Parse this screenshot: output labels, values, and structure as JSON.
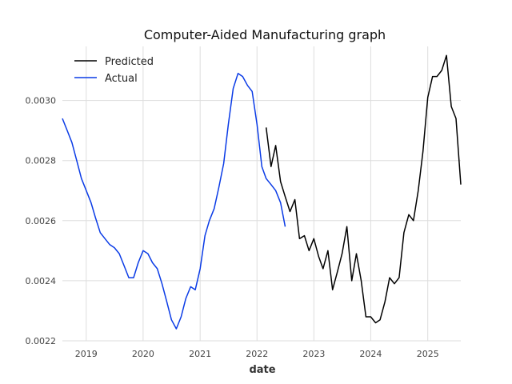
{
  "chart_data": {
    "type": "line",
    "title": "Computer-Aided Manufacturing graph",
    "xlabel": "date",
    "ylabel": "",
    "xlim": [
      "2018-08-01",
      "2025-08-01"
    ],
    "ylim": [
      0.0022,
      0.00318
    ],
    "x_ticks": [
      "2019",
      "2020",
      "2021",
      "2022",
      "2023",
      "2024",
      "2025"
    ],
    "y_ticks": [
      "0.0022",
      "0.0024",
      "0.0026",
      "0.0028",
      "0.0030"
    ],
    "grid": true,
    "legend_position": "top-left",
    "series": [
      {
        "name": "Predicted",
        "color": "#000000",
        "x": [
          "2022-03-01",
          "2022-04-01",
          "2022-05-01",
          "2022-06-01",
          "2022-07-01",
          "2022-08-01",
          "2022-09-01",
          "2022-10-01",
          "2022-11-01",
          "2022-12-01",
          "2023-01-01",
          "2023-02-01",
          "2023-03-01",
          "2023-04-01",
          "2023-05-01",
          "2023-06-01",
          "2023-07-01",
          "2023-08-01",
          "2023-09-01",
          "2023-10-01",
          "2023-11-01",
          "2023-12-01",
          "2024-01-01",
          "2024-02-01",
          "2024-03-01",
          "2024-04-01",
          "2024-05-01",
          "2024-06-01",
          "2024-07-01",
          "2024-08-01",
          "2024-09-01",
          "2024-10-01",
          "2024-11-01",
          "2024-12-01",
          "2025-01-01",
          "2025-02-01",
          "2025-03-01",
          "2025-04-01",
          "2025-05-01",
          "2025-06-01",
          "2025-07-01",
          "2025-08-01"
        ],
        "values": [
          0.00291,
          0.00278,
          0.00285,
          0.00273,
          0.00268,
          0.00263,
          0.00267,
          0.00254,
          0.00255,
          0.0025,
          0.00254,
          0.00248,
          0.00244,
          0.0025,
          0.00237,
          0.00243,
          0.00249,
          0.00258,
          0.0024,
          0.00249,
          0.0024,
          0.00228,
          0.00228,
          0.00226,
          0.00227,
          0.00233,
          0.00241,
          0.00239,
          0.00241,
          0.00256,
          0.00262,
          0.0026,
          0.0027,
          0.00283,
          0.00301,
          0.00308,
          0.00308,
          0.0031,
          0.00315,
          0.00298,
          0.00294,
          0.00272
        ]
      },
      {
        "name": "Actual",
        "color": "#0a3be6",
        "x": [
          "2018-08-01",
          "2018-09-01",
          "2018-10-01",
          "2018-11-01",
          "2018-12-01",
          "2019-01-01",
          "2019-02-01",
          "2019-03-01",
          "2019-04-01",
          "2019-05-01",
          "2019-06-01",
          "2019-07-01",
          "2019-08-01",
          "2019-09-01",
          "2019-10-01",
          "2019-11-01",
          "2019-12-01",
          "2020-01-01",
          "2020-02-01",
          "2020-03-01",
          "2020-04-01",
          "2020-05-01",
          "2020-06-01",
          "2020-07-01",
          "2020-08-01",
          "2020-09-01",
          "2020-10-01",
          "2020-11-01",
          "2020-12-01",
          "2021-01-01",
          "2021-02-01",
          "2021-03-01",
          "2021-04-01",
          "2021-05-01",
          "2021-06-01",
          "2021-07-01",
          "2021-08-01",
          "2021-09-01",
          "2021-10-01",
          "2021-11-01",
          "2021-12-01",
          "2022-01-01",
          "2022-02-01",
          "2022-03-01",
          "2022-04-01",
          "2022-05-01",
          "2022-06-01",
          "2022-07-01"
        ],
        "values": [
          0.00294,
          0.0029,
          0.00286,
          0.0028,
          0.00274,
          0.0027,
          0.00266,
          0.00261,
          0.00256,
          0.00254,
          0.00252,
          0.00251,
          0.00249,
          0.00245,
          0.00241,
          0.00241,
          0.00246,
          0.0025,
          0.00249,
          0.00246,
          0.00244,
          0.00239,
          0.00233,
          0.00227,
          0.00224,
          0.00228,
          0.00234,
          0.00238,
          0.00237,
          0.00244,
          0.00255,
          0.0026,
          0.00264,
          0.00271,
          0.00279,
          0.00292,
          0.00304,
          0.00309,
          0.00308,
          0.00305,
          0.00303,
          0.00292,
          0.00278,
          0.00274,
          0.00272,
          0.0027,
          0.00266,
          0.00258
        ]
      }
    ]
  }
}
